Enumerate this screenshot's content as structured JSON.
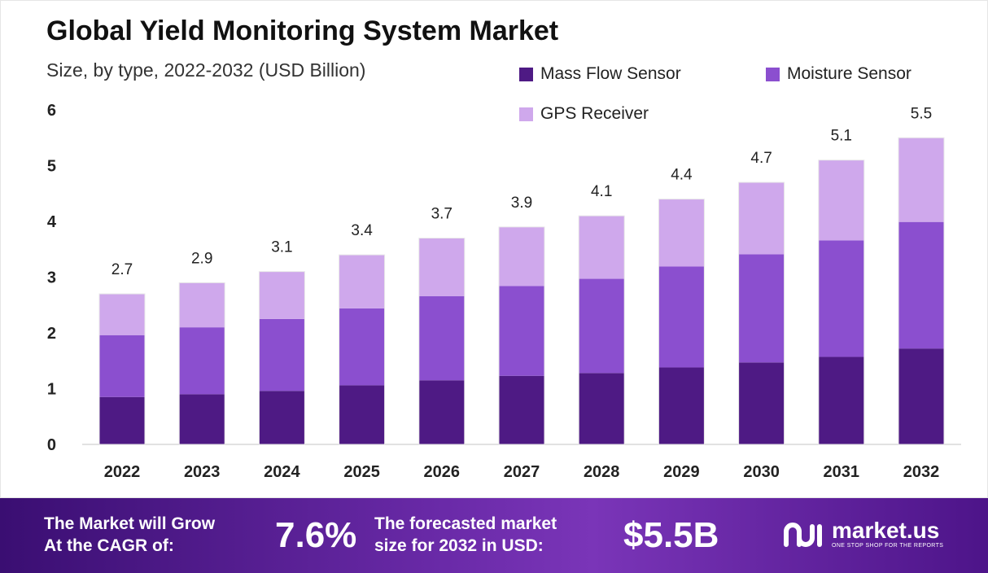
{
  "chart_data": {
    "type": "bar",
    "stacked": true,
    "title": "Global Yield Monitoring System Market",
    "subtitle": "Size, by type, 2022-2032 (USD Billion)",
    "xlabel": "",
    "ylabel": "",
    "ylim": [
      0,
      6
    ],
    "yticks": [
      0,
      1,
      2,
      3,
      4,
      5,
      6
    ],
    "categories": [
      "2022",
      "2023",
      "2024",
      "2025",
      "2026",
      "2027",
      "2028",
      "2029",
      "2030",
      "2031",
      "2032"
    ],
    "series": [
      {
        "name": "Mass Flow Sensor",
        "color": "#4e1a84",
        "values": [
          0.85,
          0.9,
          0.96,
          1.06,
          1.15,
          1.23,
          1.28,
          1.38,
          1.47,
          1.57,
          1.72
        ]
      },
      {
        "name": "Moisture Sensor",
        "color": "#8b4fcf",
        "values": [
          1.11,
          1.2,
          1.29,
          1.38,
          1.51,
          1.61,
          1.69,
          1.81,
          1.94,
          2.09,
          2.27
        ]
      },
      {
        "name": "GPS Receiver",
        "color": "#cfa8ec",
        "values": [
          0.74,
          0.8,
          0.85,
          0.96,
          1.04,
          1.06,
          1.13,
          1.21,
          1.29,
          1.44,
          1.51
        ]
      }
    ],
    "totals": [
      2.7,
      2.9,
      3.1,
      3.4,
      3.7,
      3.9,
      4.1,
      4.4,
      4.7,
      5.1,
      5.5
    ],
    "total_labels": [
      "2.7",
      "2.9",
      "3.1",
      "3.4",
      "3.7",
      "3.9",
      "4.1",
      "4.4",
      "4.7",
      "5.1",
      "5.5"
    ],
    "legend_position": "top-right",
    "grid": false
  },
  "banner": {
    "cagr_text": "The Market will Grow\nAt the CAGR of:",
    "cagr_value": "7.6%",
    "forecast_text": "The forecasted market\nsize for 2032 in USD:",
    "forecast_value": "$5.5B",
    "logo_name": "market.us",
    "logo_tagline": "ONE STOP SHOP FOR THE REPORTS",
    "logo_icon": "market-us-logo-icon"
  },
  "colors": {
    "banner_start": "#3a0e72",
    "banner_end": "#7a35b8"
  }
}
